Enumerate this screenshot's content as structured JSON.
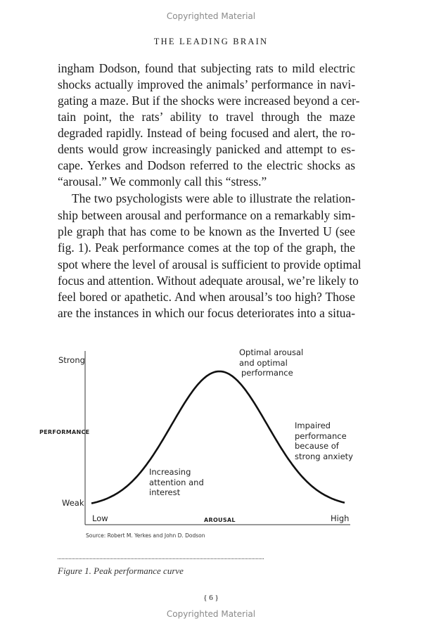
{
  "watermark": {
    "top": "Copyrighted Material",
    "bottom": "Copyrighted Material"
  },
  "running_head": "THE LEADING BRAIN",
  "body_lines": [
    "ingham Dodson, found that subjecting rats to mild electric",
    "shocks actually improved the animals’ performance in navi-",
    "gating a maze. But if the shocks were increased beyond a cer-",
    "tain point, the rats’ ability to travel through the maze",
    "degraded rapidly. Instead of being focused and alert, the ro-",
    "dents would grow increasingly panicked and attempt to es-",
    "cape. Yerkes and Dodson referred to the electric shocks as",
    "“arousal.” We commonly call this “stress.”",
    "The two psychologists were able to illustrate the relation-",
    "ship between arousal and performance on a remarkably sim-",
    "ple graph that has come to be known as the Inverted U (see",
    "fig. 1). Peak performance comes at the top of the graph, the",
    "spot where the level of arousal is sufficient to provide optimal",
    "focus and attention. Without adequate arousal, we’re likely to",
    "feel bored or apathetic. And when arousal’s too high? Those",
    "are the instances in which our focus deteriorates into a situa-"
  ],
  "figure": {
    "type": "inverted-u curve",
    "y_axis_label": "PERFORMANCE",
    "y_ticks": [
      "Strong",
      "Weak"
    ],
    "x_axis_label": "AROUSAL",
    "x_ticks": [
      "Low",
      "High"
    ],
    "annotations": {
      "peak": [
        "Optimal arousal",
        "and optimal",
        "performance"
      ],
      "rising": [
        "Increasing",
        "attention and",
        "interest"
      ],
      "falling": [
        "Impaired",
        "performance",
        "because of",
        "strong anxiety"
      ]
    },
    "source": "Source: Robert M. Yerkes and John D. Dodson",
    "caption": "Figure 1. Peak performance curve",
    "line_color": "#111111"
  },
  "page_number": "{ 6 }"
}
